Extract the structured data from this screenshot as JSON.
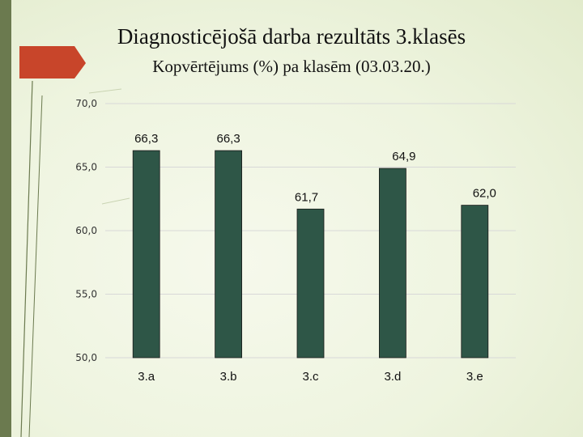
{
  "slide": {
    "title": "Diagnosticējošā darba rezultāts 3.klasēs",
    "subtitle": "Kopvērtējums (%) pa klasēm (03.03.20.)"
  },
  "colors": {
    "bar": "#2e5647",
    "accent": "#c8452a",
    "band": "#6b7a4f",
    "grid": "#d8d8d8"
  },
  "chart_data": {
    "type": "bar",
    "categories": [
      "3.a",
      "3.b",
      "3.c",
      "3.d",
      "3.e"
    ],
    "values": [
      66.3,
      66.3,
      61.7,
      64.9,
      62.0
    ],
    "value_labels": [
      "66,3",
      "66,3",
      "61,7",
      "64,9",
      "62,0"
    ],
    "title": "",
    "xlabel": "",
    "ylabel": "",
    "ylim": [
      50,
      70
    ],
    "yticks": [
      70,
      65,
      60,
      55,
      50
    ],
    "ytick_labels": [
      "70,0",
      "65,0",
      "60,0",
      "55,0",
      "50,0"
    ],
    "grid": true,
    "legend": "none"
  }
}
